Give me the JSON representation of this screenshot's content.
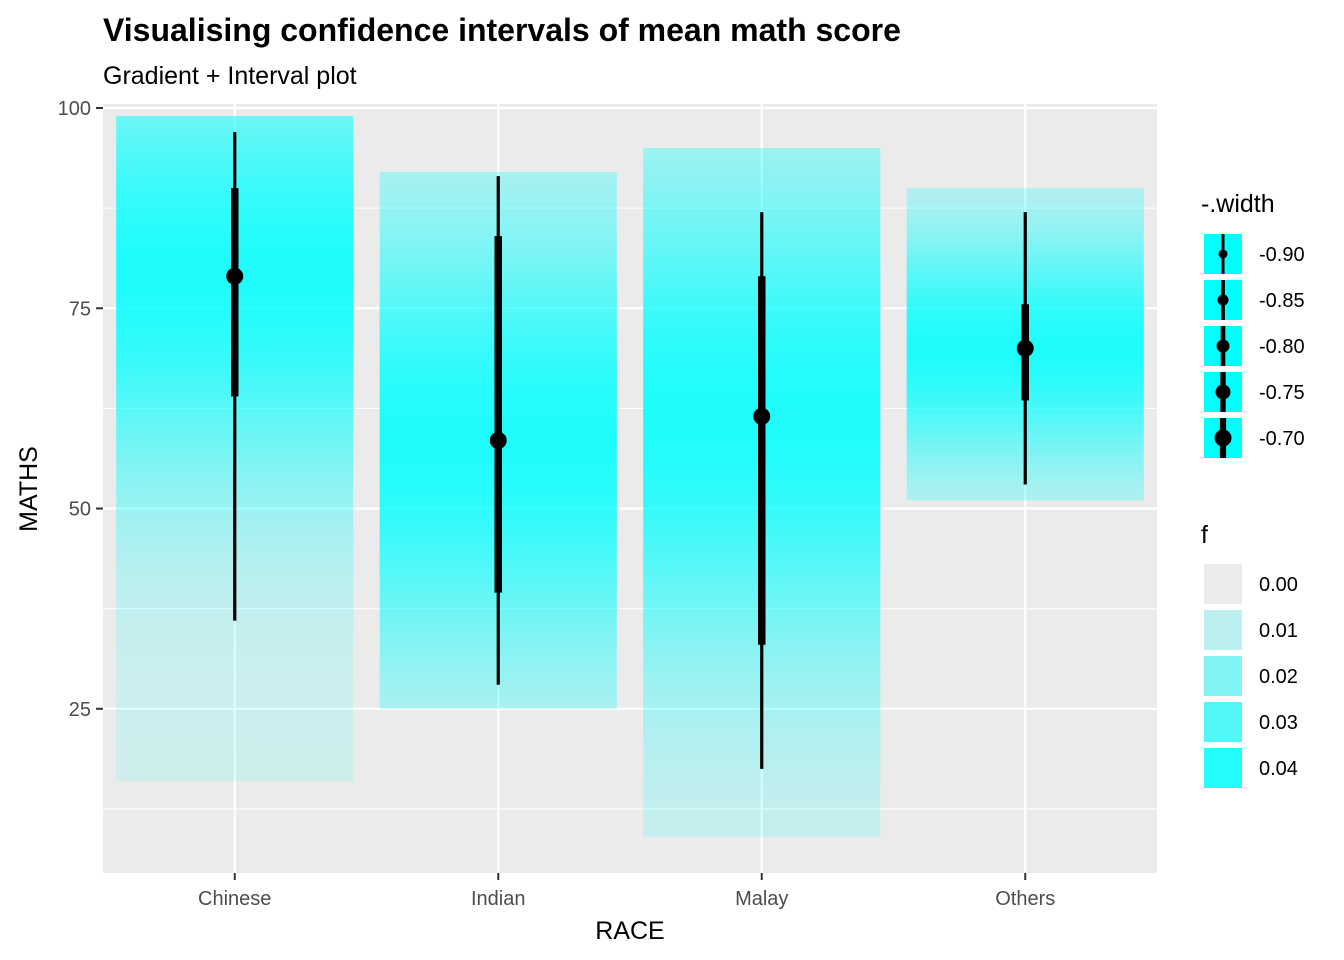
{
  "chart_data": {
    "type": "interval",
    "title": "Visualising confidence intervals of mean math score",
    "subtitle": "Gradient + Interval plot",
    "xlabel": "RACE",
    "ylabel": "MATHS",
    "categories": [
      "Chinese",
      "Indian",
      "Malay",
      "Others"
    ],
    "ylim": [
      4.5,
      100.5
    ],
    "yticks": [
      25,
      50,
      75,
      100
    ],
    "grid": true,
    "point_estimates": [
      79,
      58.5,
      61.5,
      70
    ],
    "intervals_thick": [
      [
        64,
        90
      ],
      [
        39.5,
        84
      ],
      [
        33,
        79
      ],
      [
        63.5,
        75.5
      ]
    ],
    "intervals_thin": [
      [
        36,
        97
      ],
      [
        28,
        91.5
      ],
      [
        17.5,
        87
      ],
      [
        53,
        87
      ]
    ],
    "gradient_range": [
      [
        16,
        99
      ],
      [
        25,
        92
      ],
      [
        9,
        95
      ],
      [
        51,
        90
      ]
    ],
    "gradient_color": "#00ffff",
    "point_color": "#000000",
    "panel_color": "#ebebeb",
    "legend_placement": "right",
    "legend_width": {
      "title": "-.width",
      "entries": [
        "-0.90",
        "-0.85",
        "-0.80",
        "-0.75",
        "-0.70"
      ]
    },
    "legend_f": {
      "title": "f",
      "entries": [
        "0.00",
        "0.01",
        "0.02",
        "0.03",
        "0.04"
      ],
      "alphas": [
        0,
        0.2,
        0.45,
        0.65,
        0.85
      ]
    }
  }
}
